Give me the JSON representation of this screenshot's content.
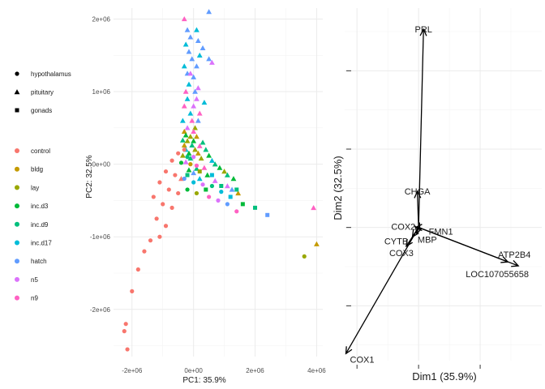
{
  "chart_data": [
    {
      "type": "scatter",
      "title": "",
      "xlabel": "PC1: 35.9%",
      "ylabel": "PC2: 32.5%",
      "xlim": [
        -2600000,
        4200000
      ],
      "ylim": [
        -2650000,
        2150000
      ],
      "xticks": [
        {
          "value": -2000000,
          "label": "-2e+06"
        },
        {
          "value": 0,
          "label": "0e+00"
        },
        {
          "value": 2000000,
          "label": "2e+06"
        },
        {
          "value": 4000000,
          "label": "4e+06"
        }
      ],
      "yticks": [
        {
          "value": -2000000,
          "label": "-2e+06"
        },
        {
          "value": -1000000,
          "label": "-1e+06"
        },
        {
          "value": 0,
          "label": "0e+00"
        },
        {
          "value": 1000000,
          "label": "1e+06"
        },
        {
          "value": 2000000,
          "label": "2e+06"
        }
      ],
      "grid": true,
      "legend_position": "left",
      "shape_legend": [
        {
          "label": "hypothalamus",
          "shape": "circle"
        },
        {
          "label": "pituitary",
          "shape": "triangle"
        },
        {
          "label": "gonads",
          "shape": "square"
        }
      ],
      "color_legend": [
        {
          "label": "control",
          "color": "#F8766D"
        },
        {
          "label": "bldg",
          "color": "#C49A00"
        },
        {
          "label": "lay",
          "color": "#99A800"
        },
        {
          "label": "inc.d3",
          "color": "#00BA38"
        },
        {
          "label": "inc.d9",
          "color": "#00BF7D"
        },
        {
          "label": "inc.d17",
          "color": "#00BCD8"
        },
        {
          "label": "hatch",
          "color": "#619CFF"
        },
        {
          "label": "n5",
          "color": "#DB72FB"
        },
        {
          "label": "n9",
          "color": "#FF61C3"
        }
      ],
      "points": [
        {
          "x": 500000,
          "y": 2100000,
          "shape": "triangle",
          "group": "hatch"
        },
        {
          "x": -300000,
          "y": 2000000,
          "shape": "triangle",
          "group": "n9"
        },
        {
          "x": -200000,
          "y": 1850000,
          "shape": "triangle",
          "group": "hatch"
        },
        {
          "x": 100000,
          "y": 1850000,
          "shape": "triangle",
          "group": "inc.d17"
        },
        {
          "x": -100000,
          "y": 1750000,
          "shape": "triangle",
          "group": "hatch"
        },
        {
          "x": 150000,
          "y": 1700000,
          "shape": "triangle",
          "group": "hatch"
        },
        {
          "x": -250000,
          "y": 1650000,
          "shape": "triangle",
          "group": "inc.d17"
        },
        {
          "x": 300000,
          "y": 1600000,
          "shape": "triangle",
          "group": "hatch"
        },
        {
          "x": -150000,
          "y": 1550000,
          "shape": "triangle",
          "group": "hatch"
        },
        {
          "x": 200000,
          "y": 1500000,
          "shape": "triangle",
          "group": "inc.d17"
        },
        {
          "x": -50000,
          "y": 1450000,
          "shape": "triangle",
          "group": "hatch"
        },
        {
          "x": 500000,
          "y": 1450000,
          "shape": "triangle",
          "group": "hatch"
        },
        {
          "x": 600000,
          "y": 1400000,
          "shape": "triangle",
          "group": "n5"
        },
        {
          "x": -300000,
          "y": 1350000,
          "shape": "triangle",
          "group": "inc.d17"
        },
        {
          "x": 100000,
          "y": 1350000,
          "shape": "triangle",
          "group": "hatch"
        },
        {
          "x": -200000,
          "y": 1250000,
          "shape": "triangle",
          "group": "hatch"
        },
        {
          "x": -100000,
          "y": 1250000,
          "shape": "triangle",
          "group": "n5"
        },
        {
          "x": 0,
          "y": 1200000,
          "shape": "triangle",
          "group": "hatch"
        },
        {
          "x": -150000,
          "y": 1100000,
          "shape": "triangle",
          "group": "inc.d17"
        },
        {
          "x": 150000,
          "y": 1050000,
          "shape": "triangle",
          "group": "n5"
        },
        {
          "x": -250000,
          "y": 1000000,
          "shape": "triangle",
          "group": "n9"
        },
        {
          "x": 50000,
          "y": 1000000,
          "shape": "triangle",
          "group": "hatch"
        },
        {
          "x": -200000,
          "y": 900000,
          "shape": "triangle",
          "group": "inc.d17"
        },
        {
          "x": 100000,
          "y": 900000,
          "shape": "triangle",
          "group": "n5"
        },
        {
          "x": 350000,
          "y": 850000,
          "shape": "triangle",
          "group": "inc.d17"
        },
        {
          "x": -300000,
          "y": 800000,
          "shape": "triangle",
          "group": "n9"
        },
        {
          "x": 0,
          "y": 800000,
          "shape": "triangle",
          "group": "n5"
        },
        {
          "x": -100000,
          "y": 700000,
          "shape": "triangle",
          "group": "inc.d17"
        },
        {
          "x": 200000,
          "y": 700000,
          "shape": "triangle",
          "group": "n9"
        },
        {
          "x": -350000,
          "y": 600000,
          "shape": "triangle",
          "group": "inc.d17"
        },
        {
          "x": -50000,
          "y": 600000,
          "shape": "triangle",
          "group": "n9"
        },
        {
          "x": 150000,
          "y": 600000,
          "shape": "triangle",
          "group": "hatch"
        },
        {
          "x": -200000,
          "y": 500000,
          "shape": "triangle",
          "group": "n5"
        },
        {
          "x": 50000,
          "y": 500000,
          "shape": "triangle",
          "group": "lay"
        },
        {
          "x": -300000,
          "y": 450000,
          "shape": "triangle",
          "group": "bldg"
        },
        {
          "x": 0,
          "y": 450000,
          "shape": "triangle",
          "group": "n9"
        },
        {
          "x": -250000,
          "y": 400000,
          "shape": "triangle",
          "group": "inc.d3"
        },
        {
          "x": -100000,
          "y": 380000,
          "shape": "triangle",
          "group": "lay"
        },
        {
          "x": 100000,
          "y": 380000,
          "shape": "triangle",
          "group": "bldg"
        },
        {
          "x": -350000,
          "y": 330000,
          "shape": "triangle",
          "group": "inc.d9"
        },
        {
          "x": -200000,
          "y": 320000,
          "shape": "triangle",
          "group": "lay"
        },
        {
          "x": 0,
          "y": 320000,
          "shape": "triangle",
          "group": "inc.d3"
        },
        {
          "x": 300000,
          "y": 300000,
          "shape": "triangle",
          "group": "inc.d9"
        },
        {
          "x": -300000,
          "y": 260000,
          "shape": "triangle",
          "group": "bldg"
        },
        {
          "x": -50000,
          "y": 260000,
          "shape": "triangle",
          "group": "inc.d9"
        },
        {
          "x": 200000,
          "y": 250000,
          "shape": "triangle",
          "group": "n9"
        },
        {
          "x": -250000,
          "y": 200000,
          "shape": "triangle",
          "group": "inc.d17"
        },
        {
          "x": 50000,
          "y": 200000,
          "shape": "triangle",
          "group": "lay"
        },
        {
          "x": 400000,
          "y": 200000,
          "shape": "triangle",
          "group": "inc.d9"
        },
        {
          "x": -150000,
          "y": 150000,
          "shape": "triangle",
          "group": "inc.d3"
        },
        {
          "x": 150000,
          "y": 150000,
          "shape": "triangle",
          "group": "bldg"
        },
        {
          "x": -350000,
          "y": 120000,
          "shape": "triangle",
          "group": "lay"
        },
        {
          "x": 500000,
          "y": 120000,
          "shape": "triangle",
          "group": "inc.d3"
        },
        {
          "x": -100000,
          "y": 80000,
          "shape": "triangle",
          "group": "inc.d9"
        },
        {
          "x": 250000,
          "y": 80000,
          "shape": "triangle",
          "group": "lay"
        },
        {
          "x": 600000,
          "y": 50000,
          "shape": "triangle",
          "group": "inc.d17"
        },
        {
          "x": -250000,
          "y": 30000,
          "shape": "triangle",
          "group": "n5"
        },
        {
          "x": 700000,
          "y": 0,
          "shape": "triangle",
          "group": "inc.d9"
        },
        {
          "x": 850000,
          "y": -50000,
          "shape": "triangle",
          "group": "inc.d3"
        },
        {
          "x": 1000000,
          "y": -100000,
          "shape": "triangle",
          "group": "lay"
        },
        {
          "x": 1100000,
          "y": -150000,
          "shape": "triangle",
          "group": "inc.d9"
        },
        {
          "x": 1300000,
          "y": -200000,
          "shape": "triangle",
          "group": "inc.d3"
        },
        {
          "x": 1100000,
          "y": -300000,
          "shape": "triangle",
          "group": "n5"
        },
        {
          "x": 1250000,
          "y": -350000,
          "shape": "triangle",
          "group": "hatch"
        },
        {
          "x": 1450000,
          "y": -400000,
          "shape": "triangle",
          "group": "bldg"
        },
        {
          "x": 3900000,
          "y": -600000,
          "shape": "triangle",
          "group": "n9"
        },
        {
          "x": 4000000,
          "y": -1100000,
          "shape": "triangle",
          "group": "bldg"
        },
        {
          "x": -150000,
          "y": -80000,
          "shape": "triangle",
          "group": "inc.d3"
        },
        {
          "x": 100000,
          "y": -60000,
          "shape": "triangle",
          "group": "inc.d9"
        },
        {
          "x": 350000,
          "y": -50000,
          "shape": "triangle",
          "group": "n9"
        },
        {
          "x": 0,
          "y": -120000,
          "shape": "triangle",
          "group": "hatch"
        },
        {
          "x": 450000,
          "y": -150000,
          "shape": "triangle",
          "group": "inc.d3"
        },
        {
          "x": 200000,
          "y": -200000,
          "shape": "triangle",
          "group": "inc.d17"
        },
        {
          "x": 700000,
          "y": -230000,
          "shape": "triangle",
          "group": "n5"
        },
        {
          "x": -400000,
          "y": -200000,
          "shape": "triangle",
          "group": "control"
        },
        {
          "x": -300000,
          "y": 200000,
          "shape": "circle",
          "group": "control"
        },
        {
          "x": -500000,
          "y": 150000,
          "shape": "circle",
          "group": "control"
        },
        {
          "x": -200000,
          "y": 100000,
          "shape": "circle",
          "group": "inc.d9"
        },
        {
          "x": 0,
          "y": 100000,
          "shape": "circle",
          "group": "n5"
        },
        {
          "x": -700000,
          "y": 50000,
          "shape": "circle",
          "group": "control"
        },
        {
          "x": -400000,
          "y": 20000,
          "shape": "circle",
          "group": "inc.d3"
        },
        {
          "x": -100000,
          "y": 0,
          "shape": "circle",
          "group": "bldg"
        },
        {
          "x": 100000,
          "y": -20000,
          "shape": "circle",
          "group": "n9"
        },
        {
          "x": -900000,
          "y": -100000,
          "shape": "circle",
          "group": "control"
        },
        {
          "x": -600000,
          "y": -150000,
          "shape": "circle",
          "group": "control"
        },
        {
          "x": -300000,
          "y": -200000,
          "shape": "circle",
          "group": "hatch"
        },
        {
          "x": 0,
          "y": -250000,
          "shape": "circle",
          "group": "inc.d17"
        },
        {
          "x": 300000,
          "y": -280000,
          "shape": "circle",
          "group": "n5"
        },
        {
          "x": -1100000,
          "y": -250000,
          "shape": "circle",
          "group": "control"
        },
        {
          "x": -800000,
          "y": -350000,
          "shape": "circle",
          "group": "control"
        },
        {
          "x": -500000,
          "y": -400000,
          "shape": "circle",
          "group": "control"
        },
        {
          "x": -200000,
          "y": -350000,
          "shape": "circle",
          "group": "inc.d3"
        },
        {
          "x": 100000,
          "y": -400000,
          "shape": "circle",
          "group": "lay"
        },
        {
          "x": 500000,
          "y": -450000,
          "shape": "circle",
          "group": "n9"
        },
        {
          "x": -1300000,
          "y": -450000,
          "shape": "circle",
          "group": "control"
        },
        {
          "x": -1000000,
          "y": -550000,
          "shape": "circle",
          "group": "control"
        },
        {
          "x": -700000,
          "y": -600000,
          "shape": "circle",
          "group": "control"
        },
        {
          "x": 800000,
          "y": -500000,
          "shape": "circle",
          "group": "n5"
        },
        {
          "x": 1100000,
          "y": -550000,
          "shape": "circle",
          "group": "hatch"
        },
        {
          "x": -1200000,
          "y": -750000,
          "shape": "circle",
          "group": "control"
        },
        {
          "x": -900000,
          "y": -850000,
          "shape": "circle",
          "group": "control"
        },
        {
          "x": -1100000,
          "y": -1000000,
          "shape": "circle",
          "group": "control"
        },
        {
          "x": -1400000,
          "y": -1050000,
          "shape": "circle",
          "group": "control"
        },
        {
          "x": -1600000,
          "y": -1200000,
          "shape": "circle",
          "group": "control"
        },
        {
          "x": -1800000,
          "y": -1450000,
          "shape": "circle",
          "group": "control"
        },
        {
          "x": -2000000,
          "y": -1750000,
          "shape": "circle",
          "group": "control"
        },
        {
          "x": -2200000,
          "y": -2200000,
          "shape": "circle",
          "group": "control"
        },
        {
          "x": -2250000,
          "y": -2300000,
          "shape": "circle",
          "group": "control"
        },
        {
          "x": -2150000,
          "y": -2550000,
          "shape": "circle",
          "group": "control"
        },
        {
          "x": 3600000,
          "y": -1270000,
          "shape": "circle",
          "group": "lay"
        },
        {
          "x": 1400000,
          "y": -650000,
          "shape": "circle",
          "group": "n9"
        },
        {
          "x": 600000,
          "y": -300000,
          "shape": "circle",
          "group": "inc.d9"
        },
        {
          "x": 900000,
          "y": -380000,
          "shape": "circle",
          "group": "inc.d17"
        },
        {
          "x": 2000000,
          "y": -600000,
          "shape": "square",
          "group": "inc.d9"
        },
        {
          "x": 2400000,
          "y": -700000,
          "shape": "square",
          "group": "hatch"
        },
        {
          "x": 1600000,
          "y": -550000,
          "shape": "square",
          "group": "inc.d3"
        },
        {
          "x": 1200000,
          "y": -450000,
          "shape": "square",
          "group": "inc.d17"
        },
        {
          "x": 900000,
          "y": -300000,
          "shape": "square",
          "group": "inc.d9"
        },
        {
          "x": 400000,
          "y": -350000,
          "shape": "square",
          "group": "inc.d3"
        },
        {
          "x": 200000,
          "y": -100000,
          "shape": "square",
          "group": "lay"
        },
        {
          "x": -200000,
          "y": -150000,
          "shape": "square",
          "group": "inc.d9"
        },
        {
          "x": 600000,
          "y": -150000,
          "shape": "square",
          "group": "inc.d17"
        },
        {
          "x": 1400000,
          "y": -350000,
          "shape": "square",
          "group": "inc.d9"
        }
      ]
    },
    {
      "type": "biplot",
      "title": "",
      "xlabel": "Dim1 (35.9%)",
      "ylabel": "Dim2 (32.5%)",
      "xlim": [
        -0.12,
        0.2
      ],
      "ylim": [
        -0.17,
        0.28
      ],
      "x_major_ticks": [
        -0.1,
        0.0,
        0.1
      ],
      "y_major_ticks": [
        -0.1,
        0.0,
        0.1,
        0.2
      ],
      "grid": true,
      "vectors": [
        {
          "label": "PRL",
          "x": 0.008,
          "y": 0.253
        },
        {
          "label": "CHGA",
          "x": -0.002,
          "y": 0.046
        },
        {
          "label": "COX2",
          "x": -0.005,
          "y": 0.0
        },
        {
          "label": "FMN1",
          "x": 0.002,
          "y": -0.003
        },
        {
          "label": "CYTB",
          "x": -0.01,
          "y": -0.012
        },
        {
          "label": "MBP",
          "x": -0.003,
          "y": -0.008
        },
        {
          "label": "COX3",
          "x": -0.02,
          "y": -0.024
        },
        {
          "label": "ATP2B4",
          "x": 0.145,
          "y": -0.044
        },
        {
          "label": "LOC107055658",
          "x": 0.162,
          "y": -0.049
        },
        {
          "label": "COX1",
          "x": -0.118,
          "y": -0.161
        }
      ]
    }
  ]
}
